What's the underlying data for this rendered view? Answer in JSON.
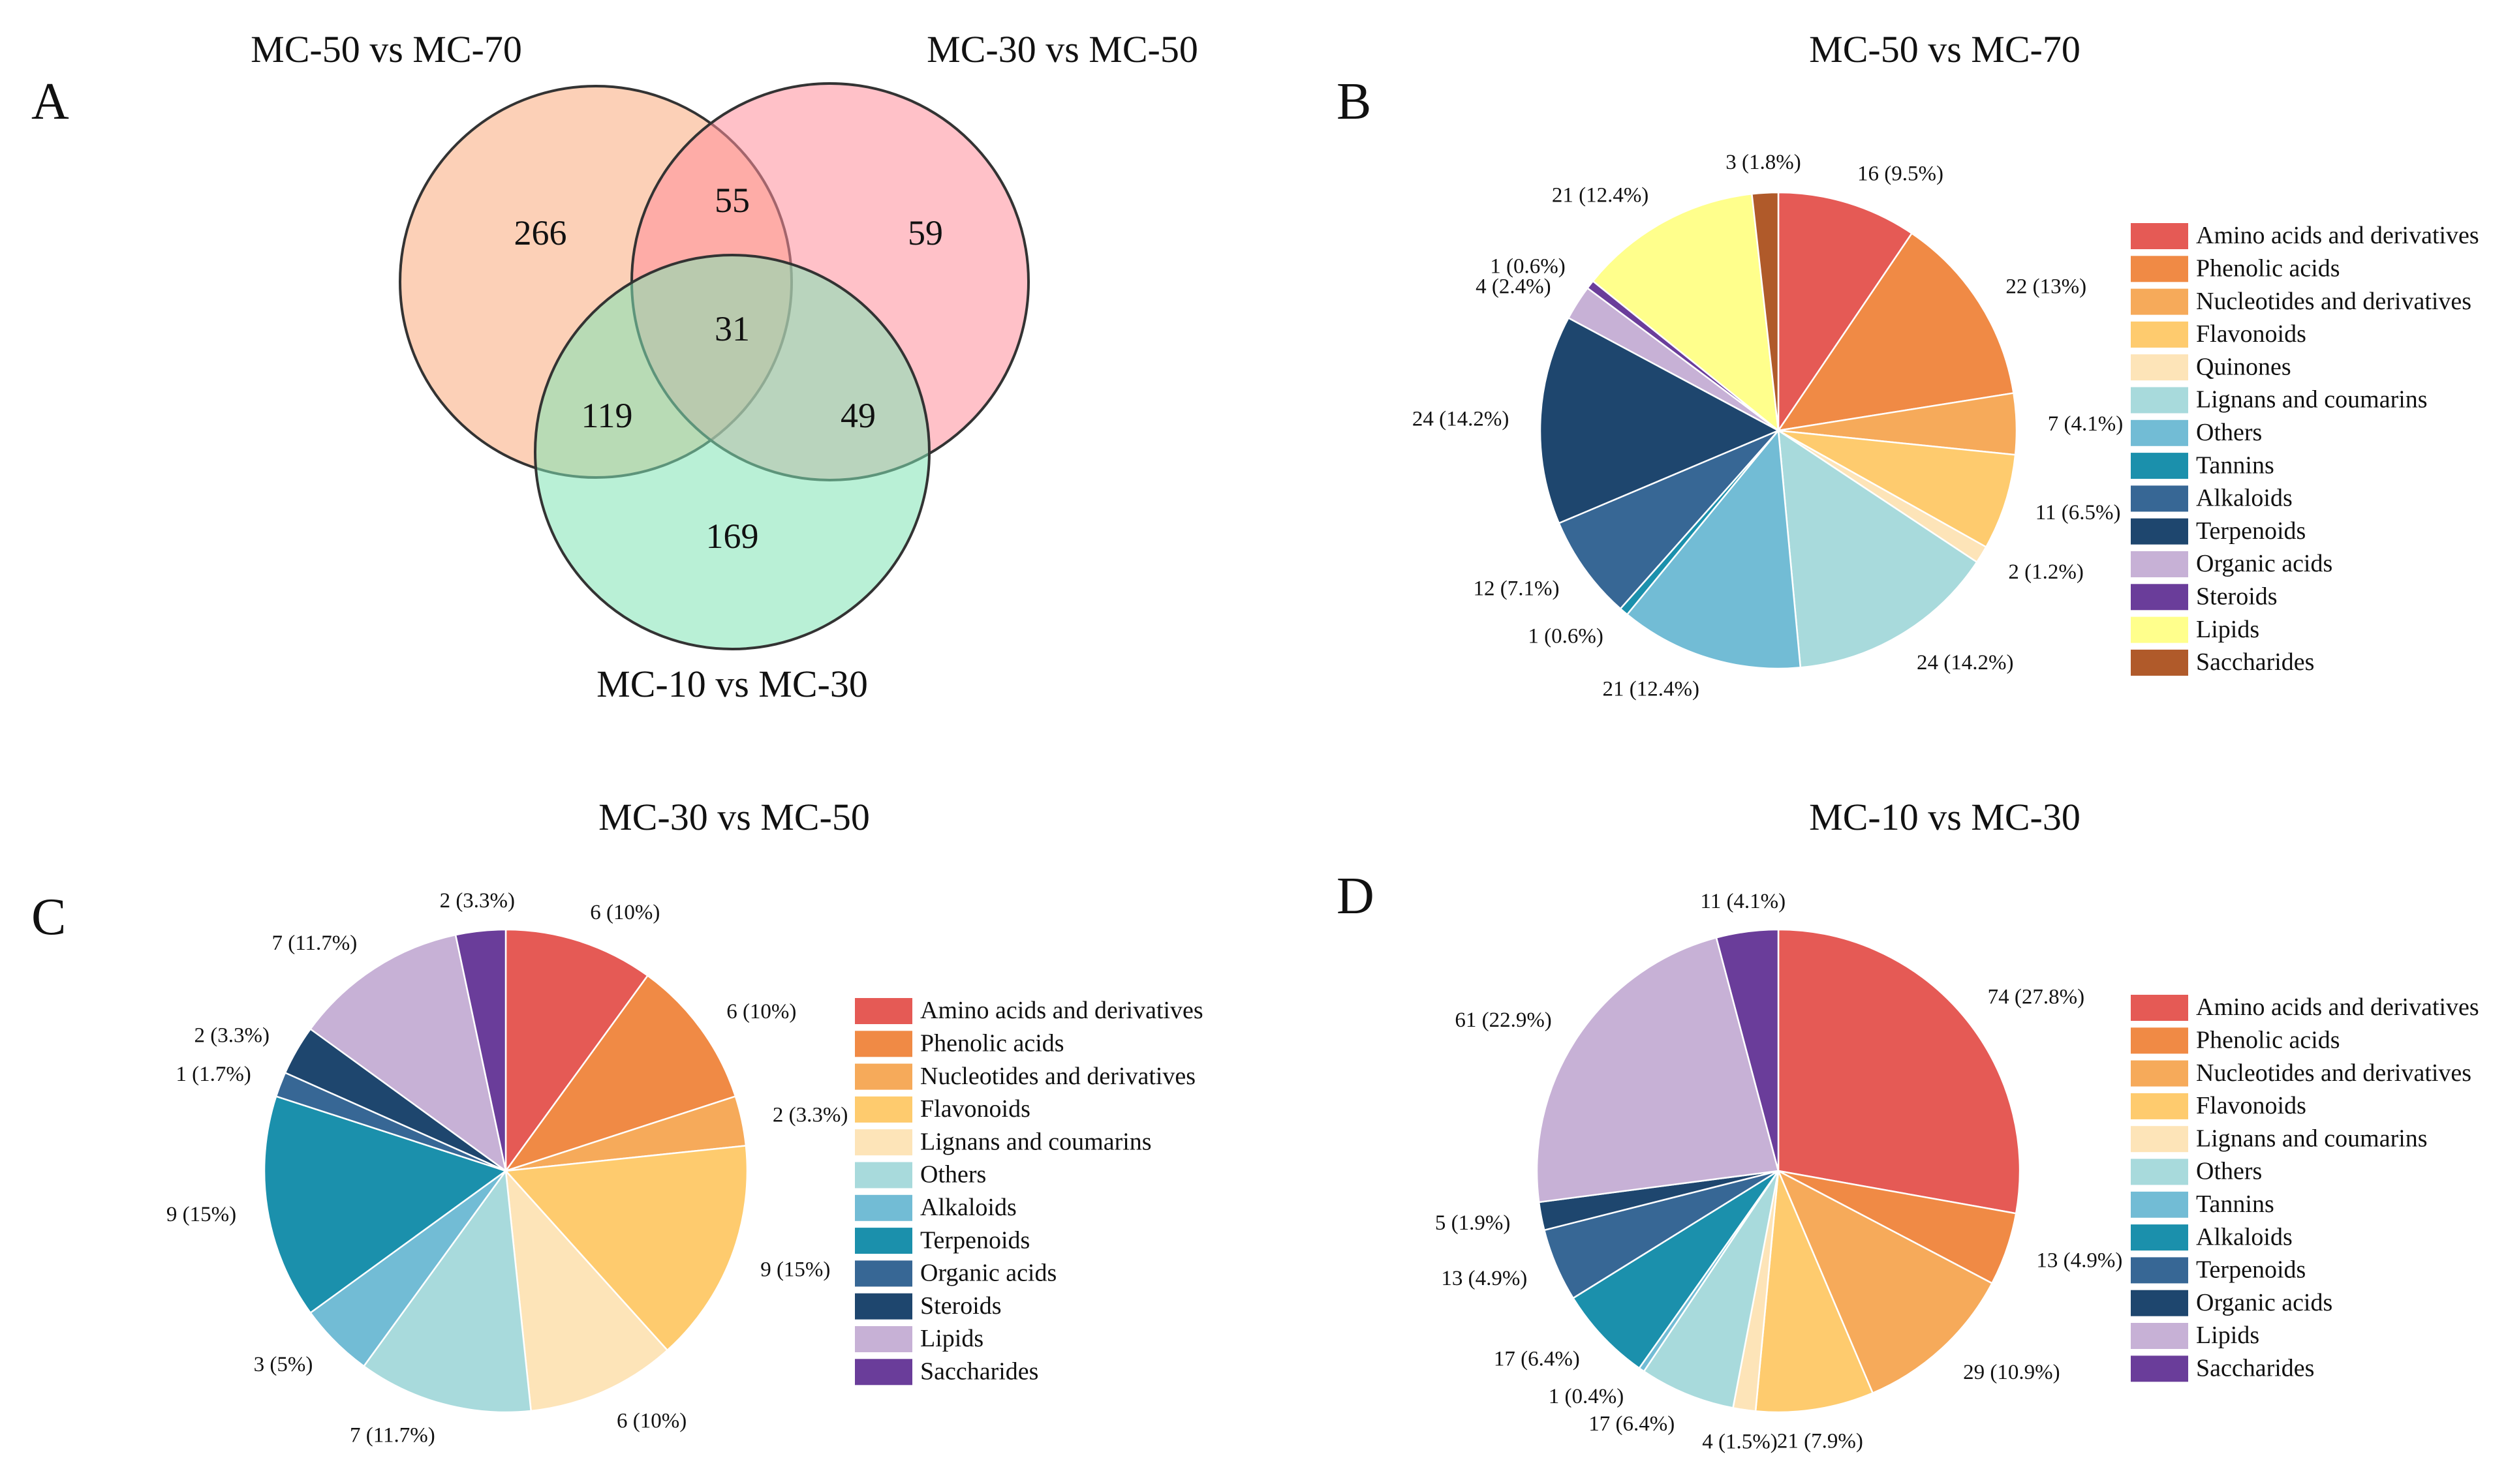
{
  "panels": {
    "A": {
      "letter": "A",
      "venn": {
        "sets": [
          {
            "name": "MC-50 vs MC-70",
            "color": "#F9A97B"
          },
          {
            "name": "MC-30 vs MC-50",
            "color": "#FF8E9A"
          },
          {
            "name": "MC-10 vs MC-30",
            "color": "#7FE3B4"
          }
        ],
        "counts": {
          "only_50_70": "266",
          "only_30_50": "59",
          "only_10_30": "169",
          "50_70_and_30_50": "55",
          "50_70_and_10_30": "119",
          "30_50_and_10_30": "49",
          "all_three": "31"
        }
      }
    },
    "B": {
      "letter": "B"
    },
    "C": {
      "letter": "C"
    },
    "D": {
      "letter": "D"
    }
  },
  "chart_data": [
    {
      "type": "pie",
      "panel": "B",
      "title": "MC-50 vs MC-70",
      "legend_position": "right",
      "slices": [
        {
          "name": "Amino acids and derivatives",
          "value": 16,
          "label": "16 (9.5%)",
          "color": "#E55A55"
        },
        {
          "name": "Phenolic acids",
          "value": 22,
          "label": "22 (13%)",
          "color": "#F08A45"
        },
        {
          "name": "Nucleotides and derivatives",
          "value": 7,
          "label": "7 (4.1%)",
          "color": "#F6AA5A"
        },
        {
          "name": "Flavonoids",
          "value": 11,
          "label": "11 (6.5%)",
          "color": "#FECB6E"
        },
        {
          "name": "Quinones",
          "value": 2,
          "label": "2 (1.2%)",
          "color": "#FDE4B8"
        },
        {
          "name": "Lignans and coumarins",
          "value": 24,
          "label": "24 (14.2%)",
          "color": "#A8DADC"
        },
        {
          "name": "Others",
          "value": 21,
          "label": "21 (12.4%)",
          "color": "#72BCD5"
        },
        {
          "name": "Tannins",
          "value": 1,
          "label": "1 (0.6%)",
          "color": "#1B90AC"
        },
        {
          "name": "Alkaloids",
          "value": 12,
          "label": "12 (7.1%)",
          "color": "#376795"
        },
        {
          "name": "Terpenoids",
          "value": 24,
          "label": "24 (14.2%)",
          "color": "#1E466E"
        },
        {
          "name": "Organic acids",
          "value": 4,
          "label": "4 (2.4%)",
          "color": "#C7B1D6"
        },
        {
          "name": "Steroids",
          "value": 1,
          "label": "1 (0.6%)",
          "color": "#6A3D9A"
        },
        {
          "name": "Lipids",
          "value": 21,
          "label": "21 (12.4%)",
          "color": "#FFFF8C"
        },
        {
          "name": "Saccharides",
          "value": 3,
          "label": "3 (1.8%)",
          "color": "#B05A2A"
        }
      ]
    },
    {
      "type": "pie",
      "panel": "C",
      "title": "MC-30 vs MC-50",
      "legend_position": "right",
      "slices": [
        {
          "name": "Amino acids and derivatives",
          "value": 6,
          "label": "6 (10%)",
          "color": "#E55A55"
        },
        {
          "name": "Phenolic acids",
          "value": 6,
          "label": "6 (10%)",
          "color": "#F08A45"
        },
        {
          "name": "Nucleotides and derivatives",
          "value": 2,
          "label": "2 (3.3%)",
          "color": "#F6AA5A"
        },
        {
          "name": "Flavonoids",
          "value": 9,
          "label": "9 (15%)",
          "color": "#FECB6E"
        },
        {
          "name": "Lignans and coumarins",
          "value": 6,
          "label": "6 (10%)",
          "color": "#FDE4B8"
        },
        {
          "name": "Others",
          "value": 7,
          "label": "7 (11.7%)",
          "color": "#A8DADC"
        },
        {
          "name": "Alkaloids",
          "value": 3,
          "label": "3 (5%)",
          "color": "#72BCD5"
        },
        {
          "name": "Terpenoids",
          "value": 9,
          "label": "9 (15%)",
          "color": "#1B90AC"
        },
        {
          "name": "Organic acids",
          "value": 1,
          "label": "1 (1.7%)",
          "color": "#376795"
        },
        {
          "name": "Steroids",
          "value": 2,
          "label": "2 (3.3%)",
          "color": "#1E466E"
        },
        {
          "name": "Lipids",
          "value": 7,
          "label": "7 (11.7%)",
          "color": "#C7B1D6"
        },
        {
          "name": "Saccharides",
          "value": 2,
          "label": "2 (3.3%)",
          "color": "#6A3D9A"
        }
      ]
    },
    {
      "type": "pie",
      "panel": "D",
      "title": "MC-10 vs MC-30",
      "legend_position": "right",
      "slices": [
        {
          "name": "Amino acids and derivatives",
          "value": 74,
          "label": "74 (27.8%)",
          "color": "#E55A55"
        },
        {
          "name": "Phenolic acids",
          "value": 13,
          "label": "13 (4.9%)",
          "color": "#F08A45"
        },
        {
          "name": "Nucleotides and derivatives",
          "value": 29,
          "label": "29 (10.9%)",
          "color": "#F6AA5A"
        },
        {
          "name": "Flavonoids",
          "value": 21,
          "label": "21 (7.9%)",
          "color": "#FECB6E"
        },
        {
          "name": "Lignans and coumarins",
          "value": 4,
          "label": "4 (1.5%)",
          "color": "#FDE4B8"
        },
        {
          "name": "Others",
          "value": 17,
          "label": "17 (6.4%)",
          "color": "#A8DADC"
        },
        {
          "name": "Tannins",
          "value": 1,
          "label": "1 (0.4%)",
          "color": "#72BCD5"
        },
        {
          "name": "Alkaloids",
          "value": 17,
          "label": "17 (6.4%)",
          "color": "#1B90AC"
        },
        {
          "name": "Terpenoids",
          "value": 13,
          "label": "13 (4.9%)",
          "color": "#376795"
        },
        {
          "name": "Organic acids",
          "value": 5,
          "label": "5 (1.9%)",
          "color": "#1E466E"
        },
        {
          "name": "Lipids",
          "value": 61,
          "label": "61 (22.9%)",
          "color": "#C7B1D6"
        },
        {
          "name": "Saccharides",
          "value": 11,
          "label": "11 (4.1%)",
          "color": "#6A3D9A"
        }
      ]
    }
  ]
}
